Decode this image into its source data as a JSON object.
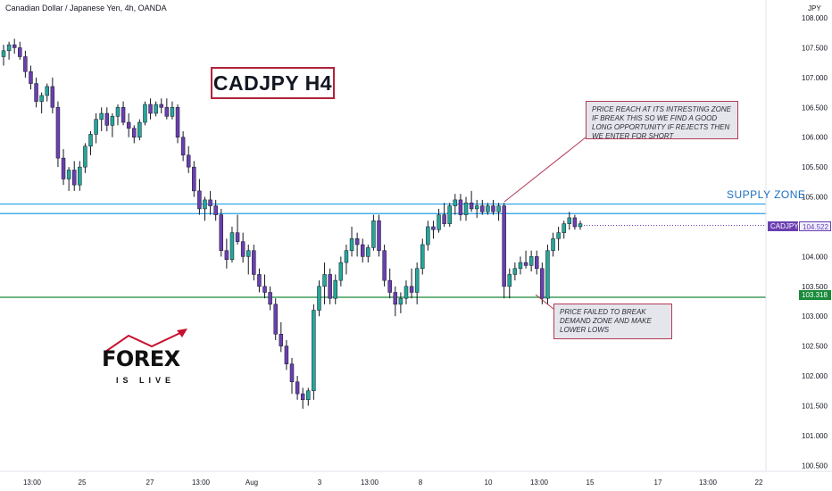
{
  "header": {
    "symbol_line": "Canadian Dollar / Japanese Yen, 4h, OANDA"
  },
  "title_box": "CADJPY H4",
  "supply_zone_label": "SUPPLY ZONE",
  "callouts": {
    "top": "PRICE REACH AT ITS INTRESTING ZONE IF BREAK THIS SO WE FIND A GOOD LONG OPPORTUNITY IF REJECTS THEN WE ENTER FOR SHORT",
    "bottom": "PRICE FAILED TO BREAK DEMAND ZONE AND MAKE LOWER LOWS"
  },
  "price_tags": {
    "symbol": "CADJPY",
    "current": "104.522",
    "support": "103.318"
  },
  "logo": {
    "main": "FOREX",
    "sub": "IS LIVE"
  },
  "colors": {
    "bull": "#26a69a",
    "bear": "#6a3fb0",
    "zone": "#22a0e8",
    "support": "#1a8a3a",
    "accent": "#b2223a",
    "tag_current": "#6a3fb0",
    "tag_support": "#1a8a3a"
  },
  "chart_data": {
    "type": "candlestick",
    "title": "CADJPY H4",
    "y_axis_label": "JPY",
    "ylim": [
      100.4,
      108.3
    ],
    "y_ticks": [
      "108.000",
      "107.500",
      "107.000",
      "106.500",
      "106.000",
      "105.500",
      "105.000",
      "104.500",
      "104.000",
      "103.500",
      "103.000",
      "102.500",
      "102.000",
      "101.500",
      "101.000",
      "100.500"
    ],
    "x_ticks": [
      "13:00",
      "25",
      "27",
      "13:00",
      "Aug",
      "3",
      "13:00",
      "8",
      "10",
      "13:00",
      "15",
      "17",
      "13:00",
      "22"
    ],
    "supply_zone": [
      104.72,
      104.88
    ],
    "support_level": 103.318,
    "current_price": 104.522,
    "candles": [
      [
        107.35,
        107.55,
        107.2,
        107.45
      ],
      [
        107.45,
        107.6,
        107.3,
        107.55
      ],
      [
        107.55,
        107.65,
        107.4,
        107.5
      ],
      [
        107.5,
        107.6,
        107.3,
        107.35
      ],
      [
        107.35,
        107.45,
        107.0,
        107.1
      ],
      [
        107.1,
        107.2,
        106.8,
        106.9
      ],
      [
        106.9,
        107.0,
        106.5,
        106.6
      ],
      [
        106.6,
        106.75,
        106.4,
        106.7
      ],
      [
        106.7,
        106.9,
        106.6,
        106.85
      ],
      [
        106.85,
        107.0,
        106.4,
        106.5
      ],
      [
        106.5,
        106.6,
        105.5,
        105.65
      ],
      [
        105.65,
        105.8,
        105.2,
        105.3
      ],
      [
        105.3,
        105.5,
        105.1,
        105.45
      ],
      [
        105.45,
        105.6,
        105.1,
        105.2
      ],
      [
        105.2,
        105.6,
        105.1,
        105.5
      ],
      [
        105.5,
        105.9,
        105.4,
        105.85
      ],
      [
        105.85,
        106.1,
        105.7,
        106.05
      ],
      [
        106.05,
        106.4,
        105.9,
        106.3
      ],
      [
        106.3,
        106.5,
        106.1,
        106.4
      ],
      [
        106.4,
        106.5,
        106.1,
        106.2
      ],
      [
        106.2,
        106.4,
        106.0,
        106.35
      ],
      [
        106.35,
        106.55,
        106.2,
        106.5
      ],
      [
        106.5,
        106.6,
        106.2,
        106.25
      ],
      [
        106.25,
        106.4,
        106.0,
        106.15
      ],
      [
        106.15,
        106.2,
        105.9,
        106.0
      ],
      [
        106.0,
        106.3,
        105.95,
        106.25
      ],
      [
        106.25,
        106.6,
        106.2,
        106.55
      ],
      [
        106.55,
        106.65,
        106.3,
        106.4
      ],
      [
        106.4,
        106.6,
        106.35,
        106.55
      ],
      [
        106.55,
        106.65,
        106.4,
        106.5
      ],
      [
        106.5,
        106.65,
        106.3,
        106.35
      ],
      [
        106.35,
        106.6,
        106.3,
        106.5
      ],
      [
        106.5,
        106.55,
        105.9,
        106.0
      ],
      [
        106.0,
        106.1,
        105.6,
        105.7
      ],
      [
        105.7,
        105.85,
        105.4,
        105.5
      ],
      [
        105.5,
        105.6,
        105.0,
        105.1
      ],
      [
        105.1,
        105.3,
        104.7,
        104.8
      ],
      [
        104.8,
        105.0,
        104.6,
        104.95
      ],
      [
        104.95,
        105.1,
        104.7,
        104.85
      ],
      [
        104.85,
        104.95,
        104.6,
        104.7
      ],
      [
        104.7,
        104.8,
        104.0,
        104.1
      ],
      [
        104.1,
        104.3,
        103.8,
        103.95
      ],
      [
        103.95,
        104.5,
        103.9,
        104.4
      ],
      [
        104.4,
        104.7,
        104.2,
        104.25
      ],
      [
        104.25,
        104.4,
        103.9,
        104.0
      ],
      [
        104.0,
        104.2,
        103.7,
        104.1
      ],
      [
        104.1,
        104.2,
        103.6,
        103.7
      ],
      [
        103.7,
        103.8,
        103.4,
        103.5
      ],
      [
        103.5,
        103.7,
        103.3,
        103.4
      ],
      [
        103.4,
        103.5,
        103.1,
        103.2
      ],
      [
        103.2,
        103.3,
        102.6,
        102.7
      ],
      [
        102.7,
        102.9,
        102.4,
        102.5
      ],
      [
        102.5,
        102.6,
        102.1,
        102.2
      ],
      [
        102.2,
        102.3,
        101.7,
        101.9
      ],
      [
        101.9,
        102.0,
        101.6,
        101.7
      ],
      [
        101.7,
        101.8,
        101.45,
        101.6
      ],
      [
        101.6,
        101.8,
        101.5,
        101.75
      ],
      [
        101.75,
        103.2,
        101.6,
        103.1
      ],
      [
        103.1,
        103.6,
        103.0,
        103.5
      ],
      [
        103.5,
        103.9,
        103.2,
        103.7
      ],
      [
        103.7,
        103.8,
        103.2,
        103.3
      ],
      [
        103.3,
        103.7,
        103.2,
        103.6
      ],
      [
        103.6,
        104.0,
        103.5,
        103.9
      ],
      [
        103.9,
        104.2,
        103.7,
        104.1
      ],
      [
        104.1,
        104.5,
        104.0,
        104.3
      ],
      [
        104.3,
        104.4,
        104.0,
        104.2
      ],
      [
        104.2,
        104.3,
        103.9,
        104.0
      ],
      [
        104.0,
        104.2,
        103.9,
        104.15
      ],
      [
        104.15,
        104.7,
        104.1,
        104.6
      ],
      [
        104.6,
        104.7,
        104.0,
        104.1
      ],
      [
        104.1,
        104.2,
        103.5,
        103.6
      ],
      [
        103.6,
        103.8,
        103.3,
        103.4
      ],
      [
        103.4,
        103.5,
        103.0,
        103.2
      ],
      [
        103.2,
        103.4,
        103.05,
        103.3
      ],
      [
        103.3,
        103.6,
        103.2,
        103.5
      ],
      [
        103.5,
        103.8,
        103.3,
        103.4
      ],
      [
        103.4,
        103.9,
        103.2,
        103.8
      ],
      [
        103.8,
        104.3,
        103.7,
        104.2
      ],
      [
        104.2,
        104.6,
        104.1,
        104.5
      ],
      [
        104.5,
        104.6,
        104.3,
        104.45
      ],
      [
        104.45,
        104.8,
        104.4,
        104.7
      ],
      [
        104.7,
        104.9,
        104.5,
        104.55
      ],
      [
        104.55,
        104.9,
        104.5,
        104.85
      ],
      [
        104.85,
        105.05,
        104.7,
        104.95
      ],
      [
        104.95,
        105.05,
        104.6,
        104.7
      ],
      [
        104.7,
        105.0,
        104.6,
        104.9
      ],
      [
        104.9,
        105.1,
        104.75,
        104.8
      ],
      [
        104.8,
        104.95,
        104.65,
        104.85
      ],
      [
        104.85,
        104.95,
        104.7,
        104.75
      ],
      [
        104.75,
        104.9,
        104.7,
        104.85
      ],
      [
        104.85,
        104.95,
        104.7,
        104.75
      ],
      [
        104.75,
        104.9,
        104.6,
        104.85
      ],
      [
        104.85,
        104.9,
        103.3,
        103.5
      ],
      [
        103.5,
        103.8,
        103.3,
        103.7
      ],
      [
        103.7,
        103.9,
        103.6,
        103.8
      ],
      [
        103.8,
        104.0,
        103.7,
        103.9
      ],
      [
        103.9,
        104.1,
        103.8,
        103.85
      ],
      [
        103.85,
        104.1,
        103.75,
        104.0
      ],
      [
        104.0,
        104.1,
        103.7,
        103.8
      ],
      [
        103.8,
        103.9,
        103.2,
        103.3
      ],
      [
        103.3,
        104.2,
        103.2,
        104.1
      ],
      [
        104.1,
        104.4,
        104.0,
        104.3
      ],
      [
        104.3,
        104.5,
        104.1,
        104.4
      ],
      [
        104.4,
        104.6,
        104.3,
        104.55
      ],
      [
        104.55,
        104.75,
        104.45,
        104.65
      ],
      [
        104.65,
        104.7,
        104.45,
        104.5
      ],
      [
        104.5,
        104.6,
        104.45,
        104.55
      ]
    ]
  }
}
